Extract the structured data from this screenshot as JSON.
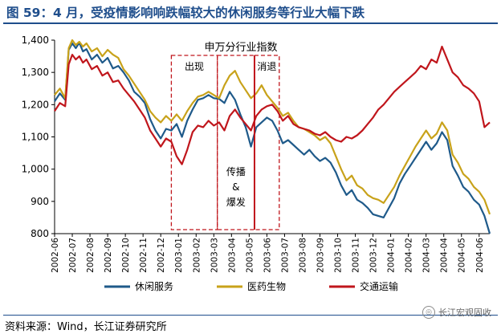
{
  "title": "图 59：4 月，受疫情影响响跌幅较大的休闲服务等行业大幅下跌",
  "source": "资料来源：Wind，长江证券研究所",
  "logo_text": "长江宏观固收",
  "chart_data": {
    "type": "line",
    "title": "申万分行业指数",
    "ylim": [
      800,
      1400
    ],
    "yticks": [
      "1,400",
      "1,300",
      "1,200",
      "1,100",
      "1,000",
      "900",
      "800"
    ],
    "xticks": [
      "2002-06",
      "2002-07",
      "2002-08",
      "2002-09",
      "2002-10",
      "2002-11",
      "2002-12",
      "2003-01",
      "2003-02",
      "2003-03",
      "2003-04",
      "2003-05",
      "2003-06",
      "2003-07",
      "2003-08",
      "2003-09",
      "2003-10",
      "2003-11",
      "2003-12",
      "2004-01",
      "2004-02",
      "2004-03",
      "2004-04",
      "2004-05",
      "2004-06"
    ],
    "x_range": [
      0,
      24.6
    ],
    "grid": false,
    "legend_position": "bottom",
    "annotations": [
      {
        "label": "出现",
        "x_start": 6.6,
        "x_end": 9.2
      },
      {
        "label": "传播 & 爆发",
        "lines": [
          "传播",
          "&",
          "爆发"
        ],
        "x_start": 9.2,
        "x_end": 11.3
      },
      {
        "label": "消退",
        "x_start": 11.3,
        "x_end": 12.7
      }
    ],
    "series": [
      {
        "name": "休闲服务",
        "color": "#1f5a8a",
        "points": [
          [
            0,
            1210
          ],
          [
            0.3,
            1235
          ],
          [
            0.6,
            1215
          ],
          [
            0.8,
            1370
          ],
          [
            1.0,
            1390
          ],
          [
            1.2,
            1375
          ],
          [
            1.4,
            1392
          ],
          [
            1.6,
            1365
          ],
          [
            1.8,
            1372
          ],
          [
            2.1,
            1340
          ],
          [
            2.4,
            1355
          ],
          [
            2.7,
            1330
          ],
          [
            3.0,
            1345
          ],
          [
            3.3,
            1312
          ],
          [
            3.6,
            1320
          ],
          [
            3.9,
            1300
          ],
          [
            4.2,
            1275
          ],
          [
            4.5,
            1240
          ],
          [
            4.8,
            1225
          ],
          [
            5.1,
            1205
          ],
          [
            5.4,
            1155
          ],
          [
            5.7,
            1120
          ],
          [
            6.0,
            1095
          ],
          [
            6.3,
            1125
          ],
          [
            6.6,
            1120
          ],
          [
            6.9,
            1140
          ],
          [
            7.2,
            1100
          ],
          [
            7.5,
            1150
          ],
          [
            7.8,
            1185
          ],
          [
            8.1,
            1215
          ],
          [
            8.4,
            1220
          ],
          [
            8.7,
            1230
          ],
          [
            9.0,
            1220
          ],
          [
            9.3,
            1218
          ],
          [
            9.6,
            1205
          ],
          [
            9.9,
            1240
          ],
          [
            10.2,
            1215
          ],
          [
            10.5,
            1170
          ],
          [
            10.8,
            1130
          ],
          [
            11.1,
            1070
          ],
          [
            11.4,
            1130
          ],
          [
            11.7,
            1145
          ],
          [
            12.0,
            1160
          ],
          [
            12.3,
            1150
          ],
          [
            12.6,
            1120
          ],
          [
            12.9,
            1080
          ],
          [
            13.2,
            1090
          ],
          [
            13.5,
            1075
          ],
          [
            13.8,
            1060
          ],
          [
            14.1,
            1045
          ],
          [
            14.4,
            1060
          ],
          [
            14.7,
            1040
          ],
          [
            15.0,
            1025
          ],
          [
            15.3,
            1035
          ],
          [
            15.6,
            1020
          ],
          [
            15.9,
            990
          ],
          [
            16.2,
            950
          ],
          [
            16.5,
            920
          ],
          [
            16.8,
            935
          ],
          [
            17.1,
            905
          ],
          [
            17.4,
            895
          ],
          [
            17.7,
            880
          ],
          [
            18.0,
            860
          ],
          [
            18.3,
            855
          ],
          [
            18.6,
            850
          ],
          [
            18.9,
            880
          ],
          [
            19.2,
            910
          ],
          [
            19.5,
            955
          ],
          [
            19.8,
            985
          ],
          [
            20.1,
            1010
          ],
          [
            20.4,
            1035
          ],
          [
            20.7,
            1060
          ],
          [
            21.0,
            1085
          ],
          [
            21.3,
            1060
          ],
          [
            21.6,
            1080
          ],
          [
            21.9,
            1115
          ],
          [
            22.2,
            1090
          ],
          [
            22.5,
            1010
          ],
          [
            22.8,
            980
          ],
          [
            23.1,
            945
          ],
          [
            23.4,
            930
          ],
          [
            23.7,
            905
          ],
          [
            24.0,
            890
          ],
          [
            24.3,
            855
          ],
          [
            24.6,
            800
          ]
        ]
      },
      {
        "name": "医药生物",
        "color": "#c8a21a",
        "points": [
          [
            0,
            1230
          ],
          [
            0.3,
            1250
          ],
          [
            0.6,
            1220
          ],
          [
            0.8,
            1375
          ],
          [
            1.0,
            1400
          ],
          [
            1.2,
            1385
          ],
          [
            1.4,
            1395
          ],
          [
            1.6,
            1380
          ],
          [
            1.8,
            1390
          ],
          [
            2.1,
            1365
          ],
          [
            2.4,
            1375
          ],
          [
            2.7,
            1350
          ],
          [
            3.0,
            1370
          ],
          [
            3.3,
            1355
          ],
          [
            3.6,
            1345
          ],
          [
            3.9,
            1310
          ],
          [
            4.2,
            1290
          ],
          [
            4.5,
            1265
          ],
          [
            4.8,
            1240
          ],
          [
            5.1,
            1215
          ],
          [
            5.4,
            1180
          ],
          [
            5.7,
            1160
          ],
          [
            6.0,
            1145
          ],
          [
            6.3,
            1165
          ],
          [
            6.6,
            1150
          ],
          [
            6.9,
            1170
          ],
          [
            7.2,
            1150
          ],
          [
            7.5,
            1180
          ],
          [
            7.8,
            1205
          ],
          [
            8.1,
            1225
          ],
          [
            8.4,
            1230
          ],
          [
            8.7,
            1240
          ],
          [
            9.0,
            1230
          ],
          [
            9.3,
            1220
          ],
          [
            9.6,
            1260
          ],
          [
            9.9,
            1290
          ],
          [
            10.2,
            1305
          ],
          [
            10.5,
            1270
          ],
          [
            10.8,
            1245
          ],
          [
            11.1,
            1220
          ],
          [
            11.4,
            1235
          ],
          [
            11.7,
            1260
          ],
          [
            12.0,
            1230
          ],
          [
            12.3,
            1210
          ],
          [
            12.6,
            1190
          ],
          [
            12.9,
            1165
          ],
          [
            13.2,
            1175
          ],
          [
            13.5,
            1150
          ],
          [
            13.8,
            1130
          ],
          [
            14.1,
            1125
          ],
          [
            14.4,
            1115
          ],
          [
            14.7,
            1105
          ],
          [
            15.0,
            1090
          ],
          [
            15.3,
            1100
          ],
          [
            15.6,
            1080
          ],
          [
            15.9,
            1040
          ],
          [
            16.2,
            1000
          ],
          [
            16.5,
            965
          ],
          [
            16.8,
            980
          ],
          [
            17.1,
            950
          ],
          [
            17.4,
            940
          ],
          [
            17.7,
            920
          ],
          [
            18.0,
            910
          ],
          [
            18.3,
            905
          ],
          [
            18.6,
            895
          ],
          [
            18.9,
            920
          ],
          [
            19.2,
            945
          ],
          [
            19.5,
            980
          ],
          [
            19.8,
            1010
          ],
          [
            20.1,
            1040
          ],
          [
            20.4,
            1070
          ],
          [
            20.7,
            1095
          ],
          [
            21.0,
            1120
          ],
          [
            21.3,
            1095
          ],
          [
            21.6,
            1110
          ],
          [
            21.9,
            1145
          ],
          [
            22.2,
            1120
          ],
          [
            22.5,
            1045
          ],
          [
            22.8,
            1020
          ],
          [
            23.1,
            985
          ],
          [
            23.4,
            970
          ],
          [
            23.7,
            945
          ],
          [
            24.0,
            930
          ],
          [
            24.3,
            905
          ],
          [
            24.6,
            860
          ]
        ]
      },
      {
        "name": "交通运输",
        "color": "#c0161c",
        "points": [
          [
            0,
            1180
          ],
          [
            0.3,
            1205
          ],
          [
            0.6,
            1195
          ],
          [
            0.8,
            1325
          ],
          [
            1.0,
            1355
          ],
          [
            1.2,
            1340
          ],
          [
            1.4,
            1350
          ],
          [
            1.6,
            1330
          ],
          [
            1.8,
            1340
          ],
          [
            2.1,
            1310
          ],
          [
            2.4,
            1320
          ],
          [
            2.7,
            1290
          ],
          [
            3.0,
            1300
          ],
          [
            3.3,
            1270
          ],
          [
            3.6,
            1275
          ],
          [
            3.9,
            1250
          ],
          [
            4.2,
            1230
          ],
          [
            4.5,
            1210
          ],
          [
            4.8,
            1185
          ],
          [
            5.1,
            1160
          ],
          [
            5.4,
            1120
          ],
          [
            5.7,
            1095
          ],
          [
            6.0,
            1070
          ],
          [
            6.3,
            1095
          ],
          [
            6.6,
            1085
          ],
          [
            6.9,
            1040
          ],
          [
            7.2,
            1015
          ],
          [
            7.5,
            1060
          ],
          [
            7.8,
            1115
          ],
          [
            8.1,
            1135
          ],
          [
            8.4,
            1130
          ],
          [
            8.7,
            1150
          ],
          [
            9.0,
            1135
          ],
          [
            9.3,
            1145
          ],
          [
            9.6,
            1120
          ],
          [
            9.9,
            1165
          ],
          [
            10.2,
            1185
          ],
          [
            10.5,
            1160
          ],
          [
            10.8,
            1140
          ],
          [
            11.1,
            1120
          ],
          [
            11.4,
            1165
          ],
          [
            11.7,
            1185
          ],
          [
            12.0,
            1195
          ],
          [
            12.3,
            1200
          ],
          [
            12.6,
            1180
          ],
          [
            12.9,
            1150
          ],
          [
            13.2,
            1165
          ],
          [
            13.5,
            1140
          ],
          [
            13.8,
            1130
          ],
          [
            14.1,
            1125
          ],
          [
            14.4,
            1120
          ],
          [
            14.7,
            1110
          ],
          [
            15.0,
            1105
          ],
          [
            15.3,
            1115
          ],
          [
            15.6,
            1100
          ],
          [
            15.9,
            1090
          ],
          [
            16.2,
            1085
          ],
          [
            16.5,
            1100
          ],
          [
            16.8,
            1095
          ],
          [
            17.1,
            1105
          ],
          [
            17.4,
            1120
          ],
          [
            17.7,
            1140
          ],
          [
            18.0,
            1160
          ],
          [
            18.3,
            1185
          ],
          [
            18.6,
            1200
          ],
          [
            18.9,
            1220
          ],
          [
            19.2,
            1240
          ],
          [
            19.5,
            1255
          ],
          [
            19.8,
            1270
          ],
          [
            20.1,
            1285
          ],
          [
            20.4,
            1300
          ],
          [
            20.7,
            1320
          ],
          [
            21.0,
            1310
          ],
          [
            21.3,
            1340
          ],
          [
            21.6,
            1330
          ],
          [
            21.9,
            1380
          ],
          [
            22.2,
            1340
          ],
          [
            22.5,
            1300
          ],
          [
            22.8,
            1285
          ],
          [
            23.1,
            1260
          ],
          [
            23.4,
            1250
          ],
          [
            23.7,
            1235
          ],
          [
            24.0,
            1210
          ],
          [
            24.3,
            1130
          ],
          [
            24.6,
            1145
          ]
        ]
      }
    ]
  }
}
